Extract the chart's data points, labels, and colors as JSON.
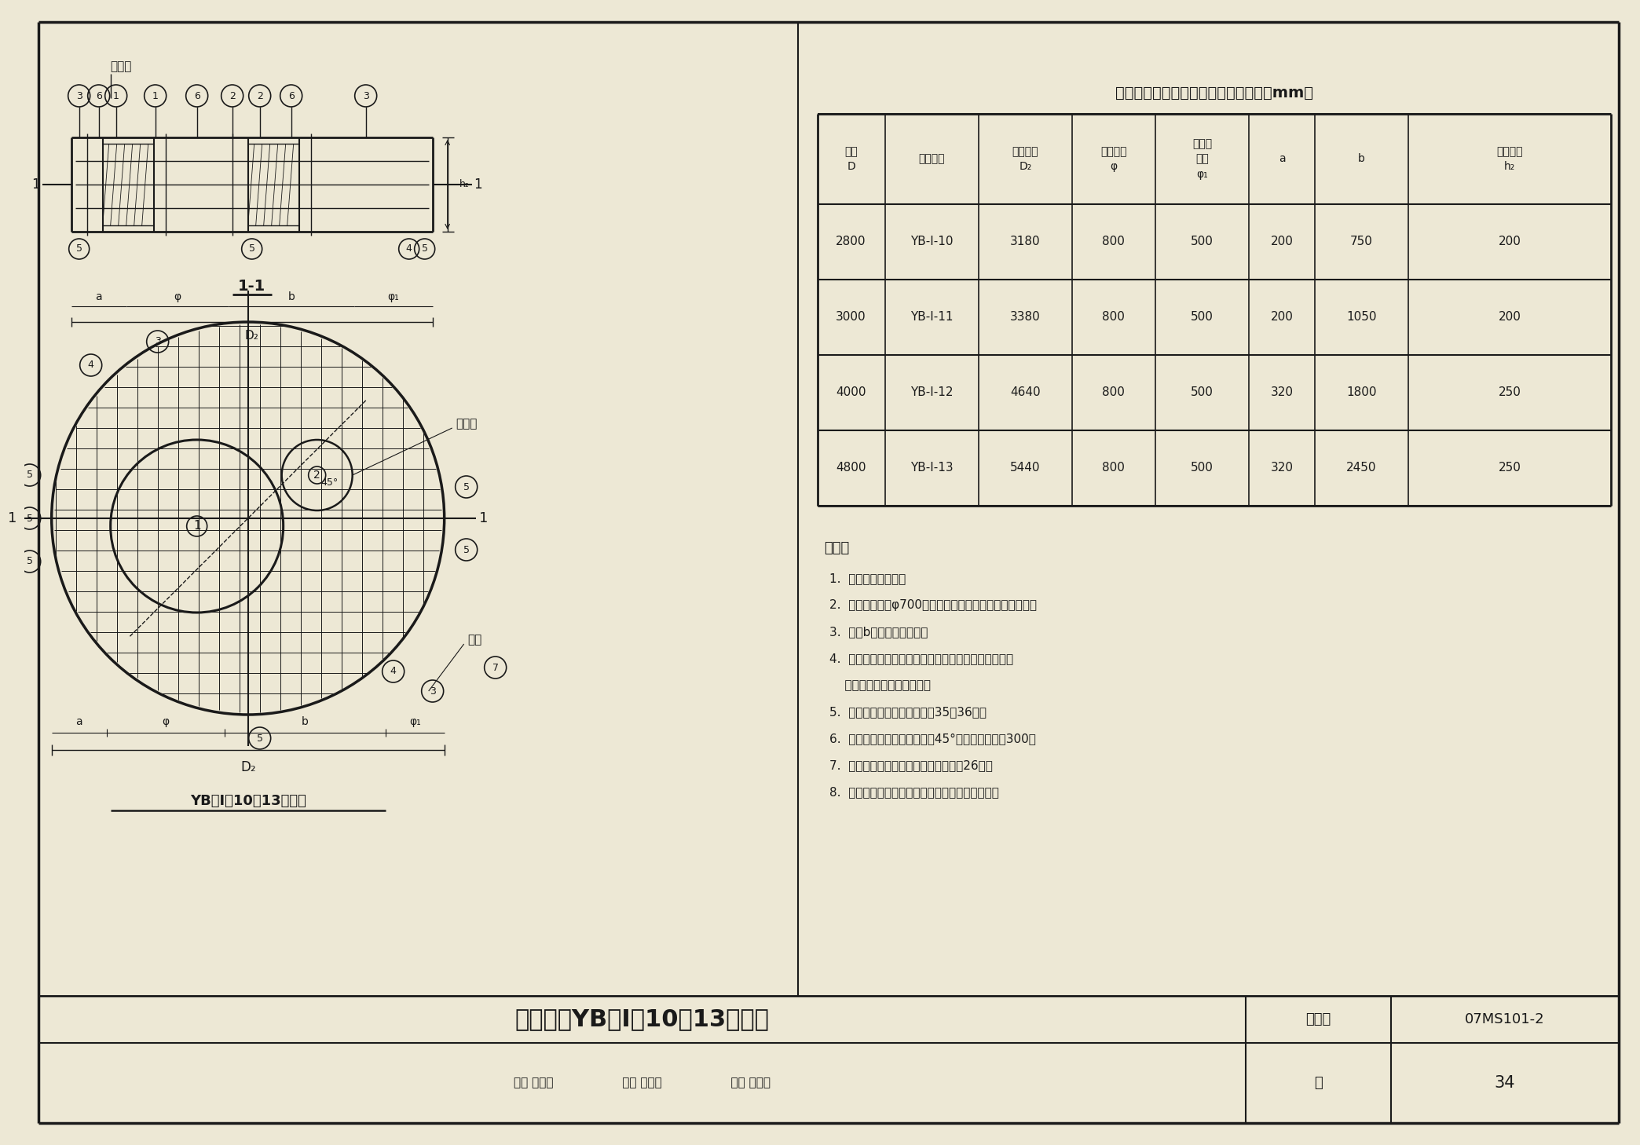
{
  "title": "砖砌圆形卧式蝶阀井预制盖板选用表（mm）",
  "table_headers_line1": [
    "井径",
    "盖板名称",
    "盖板直径",
    "人孔直径",
    "操作孔",
    "a",
    "b",
    "盖板厚度"
  ],
  "table_headers_line2": [
    "D",
    "",
    "D₂",
    "φ",
    "直径",
    "",
    "",
    "h₂"
  ],
  "table_headers_line3": [
    "",
    "",
    "",
    "",
    "φ₁",
    "",
    "",
    ""
  ],
  "table_data": [
    [
      "2800",
      "YB-Ⅰ-10",
      "3180",
      "800",
      "500",
      "200",
      "750",
      "200"
    ],
    [
      "3000",
      "YB-Ⅰ-11",
      "3380",
      "800",
      "500",
      "200",
      "1050",
      "200"
    ],
    [
      "4000",
      "YB-Ⅰ-12",
      "4640",
      "800",
      "500",
      "320",
      "1800",
      "250"
    ],
    [
      "4800",
      "YB-Ⅰ-13",
      "5440",
      "800",
      "500",
      "320",
      "2450",
      "250"
    ]
  ],
  "notes_title": "说明：",
  "notes": [
    "1.  ⓤ号筋遇洞切断。",
    "2.  当人孔直径为φ700时，需将相关钢筋的长度进行修改。",
    "3.  表中b的长度仅供参考。",
    "4.  操作孔中心的定位应与平面图中管道的操作阀门中心",
    "    对齐，定位尺寸现场商定。",
    "5.  钢筋表及材料表见本图集第35、36页。",
    "6.  吊钩中心与圆轴线的夹角里45°，距盖板外边缘300。",
    "7.  吊钩及洞口附加箍做法参见本图集第26页。",
    "8.  吊装盖板时，需按平面图中人孔所示位置放置。"
  ],
  "bottom_title": "预制盖板YB－Ⅰ－10～13配筋图",
  "bottom_label": "图集号",
  "bottom_code": "07MS101-2",
  "page_label": "页",
  "page_num": "34",
  "drawing_label": "YB－Ⅰ－10～13配筋图",
  "section_label": "1-1",
  "fujin_label": "附加筋",
  "caozuokong_label": "操作孔",
  "diaogou_label": "吊钩",
  "review_row": "审核 郭英雄                  校对 武明美                  设计 王龙生",
  "bg_color": "#ede8d5",
  "line_color": "#1a1a1a"
}
